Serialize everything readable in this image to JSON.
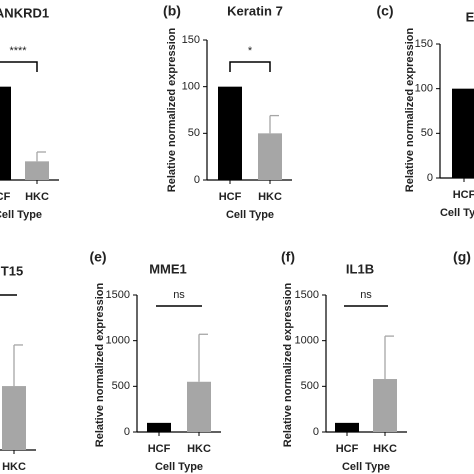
{
  "chart_data": [
    {
      "type": "bar",
      "title": "ANKRD1",
      "categories": [
        "HCF",
        "HKC"
      ],
      "values": [
        100,
        20
      ],
      "errors": [
        0,
        10
      ],
      "colors": [
        "#000000",
        "#a6a6a6"
      ],
      "xlabel": "Cell Type",
      "ylim": [
        0,
        150
      ],
      "annotation": "****"
    },
    {
      "type": "bar",
      "panel_label": "(b)",
      "title": "Keratin 7",
      "categories": [
        "HCF",
        "HKC"
      ],
      "values": [
        100,
        50
      ],
      "errors": [
        0,
        19
      ],
      "colors": [
        "#000000",
        "#a6a6a6"
      ],
      "xlabel": "Cell Type",
      "ylabel": "Relative normalized expression",
      "ylim": [
        0,
        150
      ],
      "yticks": [
        0,
        50,
        100,
        150
      ],
      "annotation": "*"
    },
    {
      "type": "bar",
      "panel_label": "(c)",
      "title": "E",
      "categories": [
        "HCF"
      ],
      "values": [
        100
      ],
      "errors": [
        0
      ],
      "colors": [
        "#000000"
      ],
      "xlabel": "Cell Type",
      "ylabel": "Relative normalized expression",
      "ylim": [
        0,
        150
      ],
      "yticks": [
        0,
        50,
        100,
        150
      ]
    },
    {
      "type": "bar",
      "title": "T15",
      "categories": [
        "HKC"
      ],
      "values": [
        700
      ],
      "errors": [
        450
      ],
      "colors": [
        "#a6a6a6"
      ],
      "xlabel": "Cell Type",
      "ylim": [
        0,
        1500
      ]
    },
    {
      "type": "bar",
      "panel_label": "(e)",
      "title": "MME1",
      "categories": [
        "HCF",
        "HKC"
      ],
      "values": [
        100,
        550
      ],
      "errors": [
        0,
        520
      ],
      "colors": [
        "#000000",
        "#a6a6a6"
      ],
      "xlabel": "Cell Type",
      "ylabel": "Relative normalized expression",
      "ylim": [
        0,
        1500
      ],
      "yticks": [
        0,
        500,
        1000,
        1500
      ],
      "annotation": "ns"
    },
    {
      "type": "bar",
      "panel_label": "(f)",
      "title": "IL1B",
      "categories": [
        "HCF",
        "HKC"
      ],
      "values": [
        100,
        580
      ],
      "errors": [
        0,
        470
      ],
      "colors": [
        "#000000",
        "#a6a6a6"
      ],
      "xlabel": "Cell Type",
      "ylabel": "Relative normalized expression",
      "ylim": [
        0,
        1500
      ],
      "yticks": [
        0,
        500,
        1000,
        1500
      ],
      "annotation": "ns"
    },
    {
      "type": "bar",
      "panel_label": "(g)"
    }
  ]
}
